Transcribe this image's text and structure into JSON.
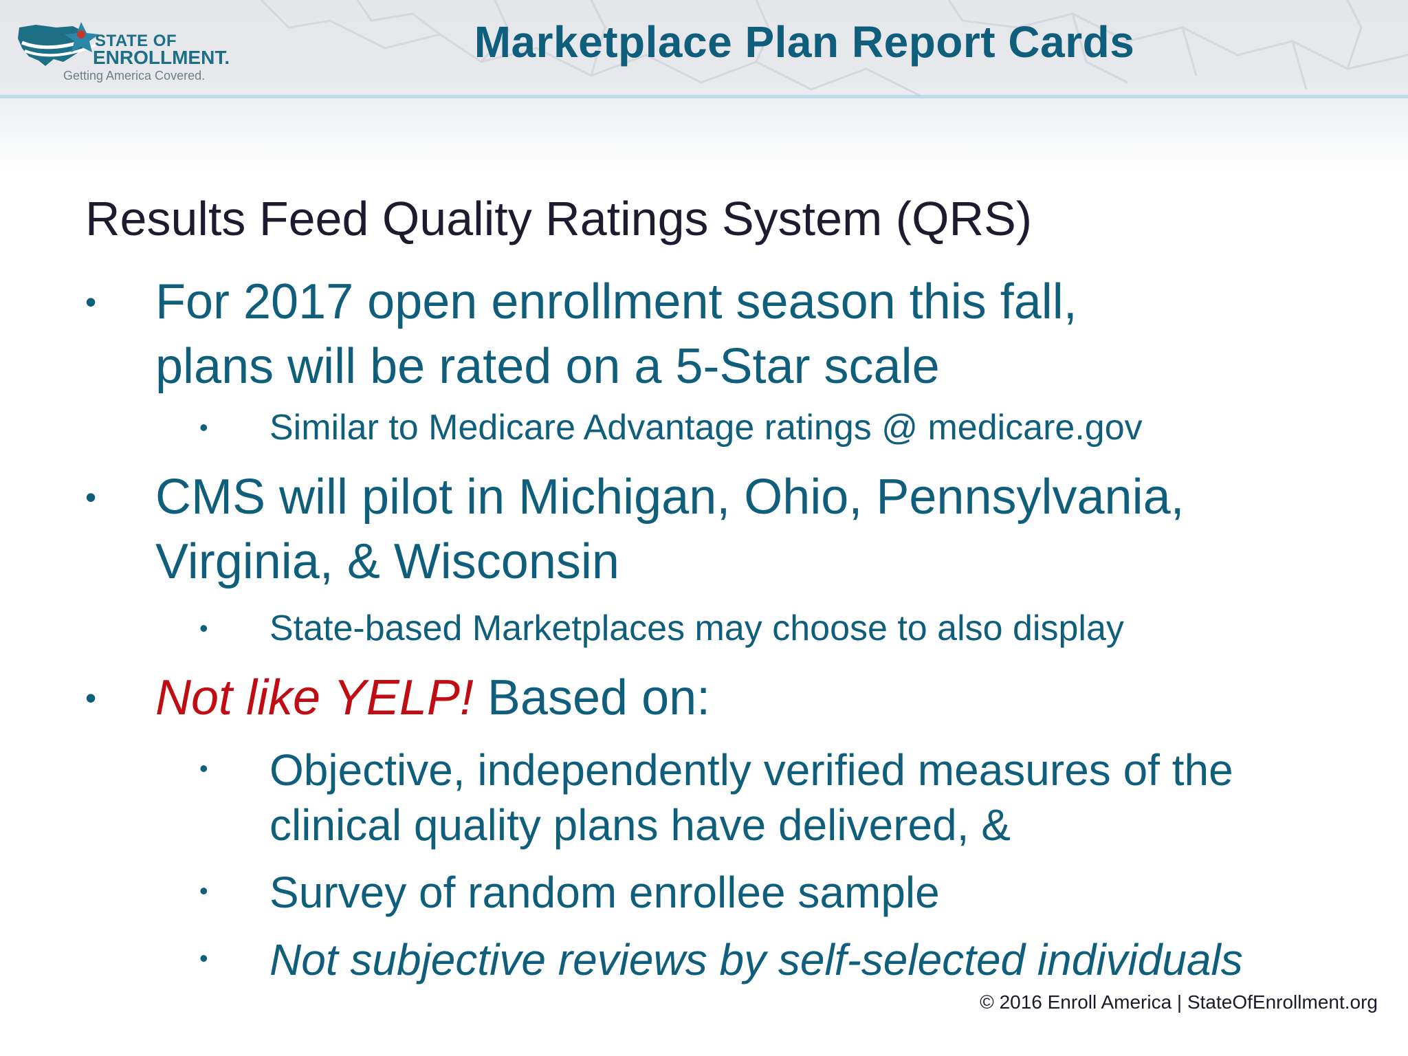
{
  "header": {
    "logo": {
      "line1": "STATE OF",
      "line2": "ENROLLMENT.",
      "tagline": "Getting America Covered."
    },
    "title": "Marketplace Plan Report Cards"
  },
  "content": {
    "heading": "Results Feed Quality Ratings System (QRS)",
    "bullet_glyph": "•",
    "items": [
      {
        "lines": [
          "For 2017 open enrollment season this fall,",
          "plans will be rated on a 5-Star scale"
        ],
        "subitems": [
          {
            "lines": [
              "Similar to Medicare Advantage ratings @ medicare.gov"
            ]
          }
        ]
      },
      {
        "lines": [
          "CMS will pilot in Michigan, Ohio, Pennsylvania,",
          "Virginia, & Wisconsin"
        ],
        "subitems": [
          {
            "lines": [
              "State-based Marketplaces may choose to also display"
            ]
          }
        ]
      },
      {
        "emphasis": "Not like YELP!",
        "rest": " Based on:",
        "subitems": [
          {
            "lines": [
              "Objective, independently verified measures of the",
              "clinical quality plans have delivered, &"
            ]
          },
          {
            "lines": [
              "Survey of random enrollee sample"
            ]
          },
          {
            "lines": [
              "Not subjective reviews by self-selected individuals"
            ]
          }
        ]
      }
    ]
  },
  "footer": {
    "text": "© 2016 Enroll America | StateOfEnrollment.org"
  },
  "colors": {
    "title": "#0e5e7c",
    "body": "#0e5e7c",
    "heading": "#1d1b2e",
    "accent_red": "#c00d14",
    "logo": "#1d6f86"
  },
  "icons": {
    "logo_mark": "us-map-check-icon",
    "background": "us-map-outline-icon"
  }
}
